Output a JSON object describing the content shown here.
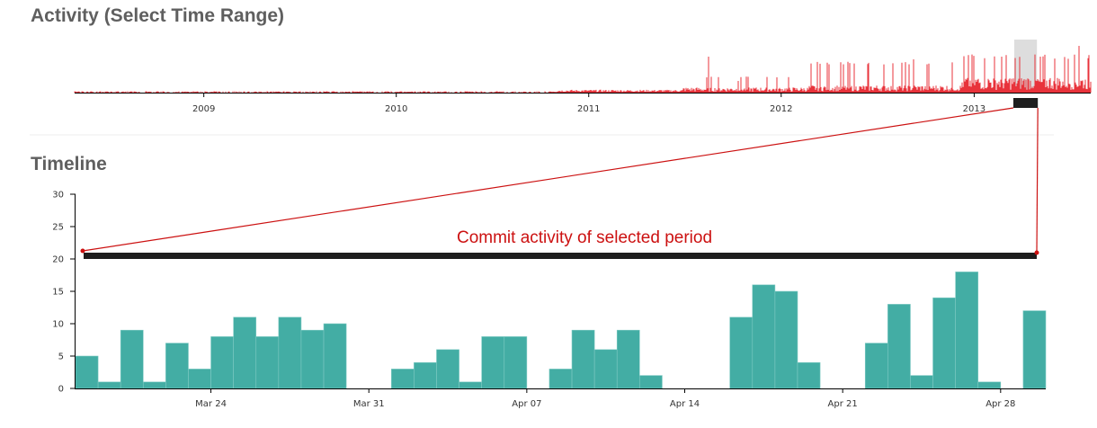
{
  "colors": {
    "heading": "#5f5f5f",
    "bar_fill": "#43ada4",
    "bar_stroke": "#7fcac3",
    "overview_series": "#e8333b",
    "brush": "#dddddd",
    "handle": "#1e1e1e",
    "annotation": "#cc1111"
  },
  "overview": {
    "title": "Activity (Select Time Range)",
    "type": "bar",
    "ticks": [
      "2009",
      "2010",
      "2011",
      "2012",
      "2013"
    ],
    "x_range": [
      "2008-05-01",
      "2013-08-10"
    ],
    "brush_range": [
      "2013-03-18",
      "2013-04-30"
    ]
  },
  "annotation": {
    "label": "Commit activity of selected period"
  },
  "chart_data": {
    "type": "bar",
    "title": "Timeline",
    "xlabel": "",
    "ylabel": "",
    "ylim": [
      0,
      30
    ],
    "yticks": [
      0,
      5,
      10,
      15,
      20,
      25,
      30
    ],
    "x_range": [
      "2013-03-18",
      "2013-04-30"
    ],
    "xticks": [
      {
        "date": "2013-03-24",
        "label": "Mar 24"
      },
      {
        "date": "2013-03-31",
        "label": "Mar 31"
      },
      {
        "date": "2013-04-07",
        "label": "Apr 07"
      },
      {
        "date": "2013-04-14",
        "label": "Apr 14"
      },
      {
        "date": "2013-04-21",
        "label": "Apr 21"
      },
      {
        "date": "2013-04-28",
        "label": "Apr 28"
      }
    ],
    "grid": false,
    "x": [
      "2013-03-18",
      "2013-03-19",
      "2013-03-20",
      "2013-03-21",
      "2013-03-22",
      "2013-03-23",
      "2013-03-24",
      "2013-03-25",
      "2013-03-26",
      "2013-03-27",
      "2013-03-28",
      "2013-03-29",
      "2013-03-30",
      "2013-03-31",
      "2013-04-01",
      "2013-04-02",
      "2013-04-03",
      "2013-04-04",
      "2013-04-05",
      "2013-04-06",
      "2013-04-07",
      "2013-04-08",
      "2013-04-09",
      "2013-04-10",
      "2013-04-11",
      "2013-04-12",
      "2013-04-13",
      "2013-04-14",
      "2013-04-15",
      "2013-04-16",
      "2013-04-17",
      "2013-04-18",
      "2013-04-19",
      "2013-04-20",
      "2013-04-21",
      "2013-04-22",
      "2013-04-23",
      "2013-04-24",
      "2013-04-25",
      "2013-04-26",
      "2013-04-27",
      "2013-04-28",
      "2013-04-29"
    ],
    "values": [
      5,
      1,
      9,
      1,
      7,
      3,
      8,
      11,
      8,
      11,
      9,
      10,
      0,
      0,
      3,
      4,
      6,
      1,
      8,
      8,
      0,
      3,
      9,
      6,
      9,
      2,
      0,
      0,
      0,
      11,
      16,
      15,
      4,
      0,
      0,
      7,
      13,
      2,
      14,
      18,
      1,
      0,
      12
    ]
  }
}
